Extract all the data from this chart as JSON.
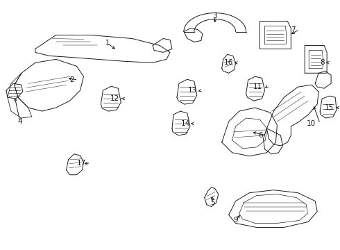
{
  "background_color": "#ffffff",
  "line_color": "#1a1a1a",
  "label_color": "#000000",
  "fig_width": 4.9,
  "fig_height": 3.6,
  "dpi": 100,
  "font_size_label": 7.5,
  "line_width": 0.7
}
